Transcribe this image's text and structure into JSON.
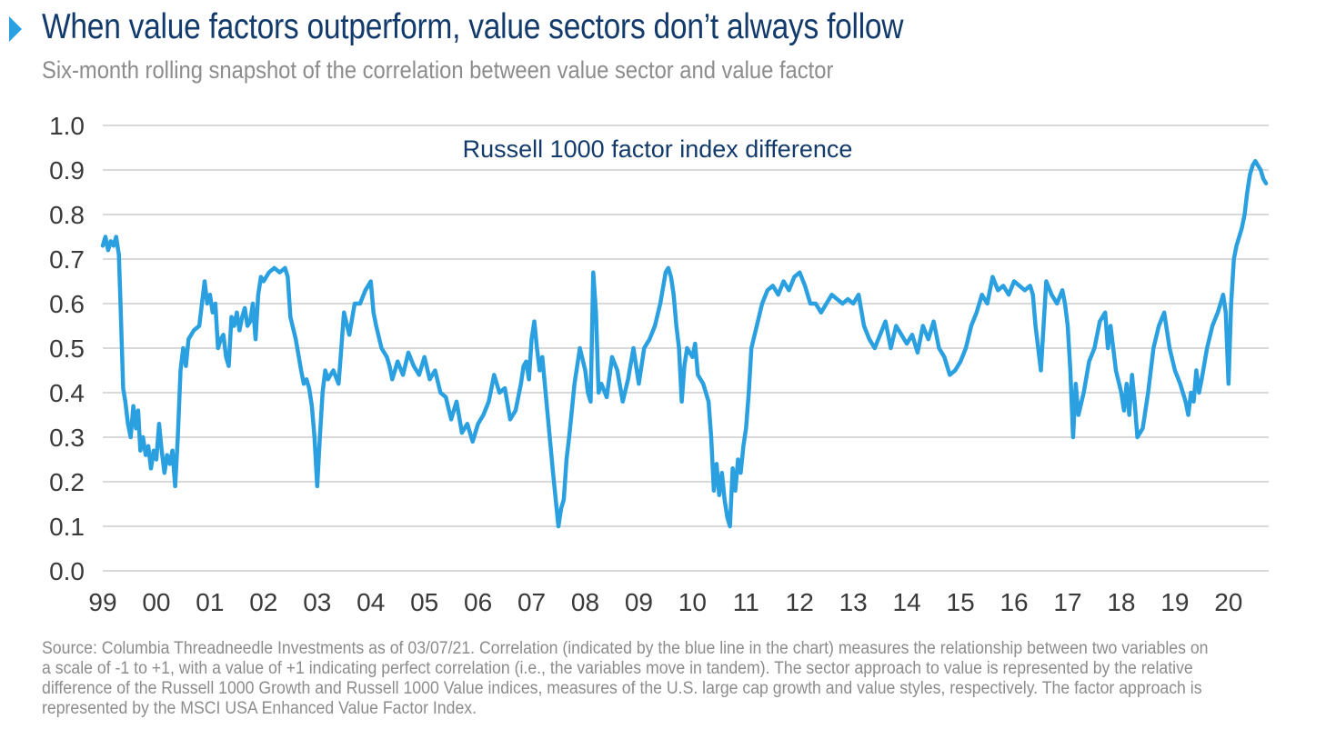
{
  "header": {
    "title": "When value factors outperform, value sectors don’t always follow",
    "subtitle": "Six-month rolling snapshot of the correlation between value sector and value factor"
  },
  "footer": {
    "source": "Source: Columbia Threadneedle Investments as of 03/07/21. Correlation (indicated by the blue line in the chart) measures the relationship between two variables on a scale of -1 to +1, with a value of +1 indicating perfect correlation (i.e., the variables move in tandem). The sector approach to value is represented by the relative difference of the Russell 1000 Growth and Russell 1000 Value indices, measures of the U.S. large cap growth and value styles, respectively. The factor approach is represented by the MSCI USA Enhanced Value Factor Index."
  },
  "colors": {
    "line": "#2aa0e0",
    "title": "#123a6b",
    "grid": "#d9d9d9",
    "text_gray": "#8c8c8c",
    "marker": "#2aa0e0"
  },
  "chart_data": {
    "type": "line",
    "series_label": "Russell 1000 factor index difference",
    "xlabel": "",
    "ylabel": "",
    "x_ticks": [
      "99",
      "00",
      "01",
      "02",
      "03",
      "04",
      "05",
      "06",
      "07",
      "08",
      "09",
      "10",
      "11",
      "12",
      "13",
      "14",
      "15",
      "16",
      "17",
      "18",
      "19",
      "20"
    ],
    "y_ticks": [
      "0.0",
      "0.1",
      "0.2",
      "0.3",
      "0.4",
      "0.5",
      "0.6",
      "0.7",
      "0.8",
      "0.9",
      "1.0"
    ],
    "xlim": [
      1999.0,
      2020.75
    ],
    "ylim": [
      0.0,
      1.0
    ],
    "grid": true,
    "series": [
      {
        "name": "Russell 1000 factor index difference",
        "x": [
          1999.0,
          1999.05,
          1999.1,
          1999.15,
          1999.2,
          1999.25,
          1999.3,
          1999.33,
          1999.38,
          1999.42,
          1999.47,
          1999.52,
          1999.57,
          1999.62,
          1999.66,
          1999.7,
          1999.75,
          1999.8,
          1999.85,
          1999.9,
          1999.95,
          2000.0,
          2000.05,
          2000.1,
          2000.15,
          2000.2,
          2000.25,
          2000.3,
          2000.35,
          2000.4,
          2000.45,
          2000.5,
          2000.55,
          2000.6,
          2000.7,
          2000.8,
          2000.9,
          2000.95,
          2001.0,
          2001.05,
          2001.1,
          2001.15,
          2001.2,
          2001.25,
          2001.3,
          2001.35,
          2001.4,
          2001.45,
          2001.5,
          2001.55,
          2001.6,
          2001.65,
          2001.7,
          2001.75,
          2001.8,
          2001.85,
          2001.9,
          2001.95,
          2002.0,
          2002.1,
          2002.2,
          2002.3,
          2002.4,
          2002.45,
          2002.5,
          2002.6,
          2002.7,
          2002.75,
          2002.8,
          2002.85,
          2002.9,
          2002.95,
          2003.0,
          2003.05,
          2003.1,
          2003.15,
          2003.2,
          2003.25,
          2003.3,
          2003.4,
          2003.45,
          2003.5,
          2003.6,
          2003.7,
          2003.8,
          2003.9,
          2004.0,
          2004.05,
          2004.1,
          2004.2,
          2004.3,
          2004.35,
          2004.4,
          2004.5,
          2004.6,
          2004.7,
          2004.8,
          2004.9,
          2005.0,
          2005.1,
          2005.2,
          2005.3,
          2005.4,
          2005.5,
          2005.6,
          2005.7,
          2005.8,
          2005.9,
          2006.0,
          2006.1,
          2006.2,
          2006.3,
          2006.4,
          2006.5,
          2006.6,
          2006.7,
          2006.8,
          2006.85,
          2006.9,
          2006.95,
          2007.0,
          2007.05,
          2007.1,
          2007.15,
          2007.2,
          2007.3,
          2007.4,
          2007.5,
          2007.55,
          2007.6,
          2007.65,
          2007.7,
          2007.8,
          2007.9,
          2008.0,
          2008.05,
          2008.1,
          2008.15,
          2008.2,
          2008.25,
          2008.3,
          2008.4,
          2008.5,
          2008.6,
          2008.7,
          2008.8,
          2008.9,
          2009.0,
          2009.1,
          2009.2,
          2009.3,
          2009.4,
          2009.5,
          2009.55,
          2009.6,
          2009.65,
          2009.7,
          2009.75,
          2009.8,
          2009.85,
          2009.9,
          2010.0,
          2010.05,
          2010.1,
          2010.2,
          2010.3,
          2010.35,
          2010.4,
          2010.45,
          2010.5,
          2010.55,
          2010.6,
          2010.65,
          2010.7,
          2010.75,
          2010.8,
          2010.85,
          2010.9,
          2010.95,
          2011.0,
          2011.05,
          2011.1,
          2011.2,
          2011.3,
          2011.4,
          2011.5,
          2011.6,
          2011.7,
          2011.8,
          2011.9,
          2012.0,
          2012.1,
          2012.2,
          2012.3,
          2012.4,
          2012.5,
          2012.6,
          2012.7,
          2012.8,
          2012.9,
          2013.0,
          2013.1,
          2013.2,
          2013.3,
          2013.4,
          2013.5,
          2013.6,
          2013.7,
          2013.8,
          2013.9,
          2014.0,
          2014.1,
          2014.2,
          2014.3,
          2014.4,
          2014.5,
          2014.6,
          2014.7,
          2014.8,
          2014.9,
          2015.0,
          2015.1,
          2015.2,
          2015.3,
          2015.4,
          2015.5,
          2015.6,
          2015.7,
          2015.8,
          2015.9,
          2016.0,
          2016.1,
          2016.2,
          2016.3,
          2016.35,
          2016.4,
          2016.5,
          2016.6,
          2016.7,
          2016.8,
          2016.9,
          2016.95,
          2017.0,
          2017.05,
          2017.1,
          2017.15,
          2017.2,
          2017.3,
          2017.4,
          2017.5,
          2017.6,
          2017.7,
          2017.75,
          2017.8,
          2017.9,
          2018.0,
          2018.05,
          2018.1,
          2018.15,
          2018.2,
          2018.25,
          2018.3,
          2018.4,
          2018.5,
          2018.6,
          2018.7,
          2018.8,
          2018.9,
          2019.0,
          2019.1,
          2019.2,
          2019.25,
          2019.3,
          2019.35,
          2019.4,
          2019.45,
          2019.5,
          2019.6,
          2019.7,
          2019.8,
          2019.85,
          2019.9,
          2019.95,
          2020.0,
          2020.05,
          2020.1,
          2020.15,
          2020.2,
          2020.25,
          2020.3,
          2020.35,
          2020.4,
          2020.45,
          2020.5,
          2020.55,
          2020.6,
          2020.65,
          2020.7
        ],
        "values": [
          0.73,
          0.75,
          0.72,
          0.74,
          0.73,
          0.75,
          0.71,
          0.6,
          0.41,
          0.38,
          0.33,
          0.3,
          0.37,
          0.32,
          0.36,
          0.27,
          0.3,
          0.26,
          0.28,
          0.23,
          0.27,
          0.25,
          0.33,
          0.27,
          0.22,
          0.26,
          0.24,
          0.27,
          0.19,
          0.3,
          0.45,
          0.5,
          0.46,
          0.52,
          0.54,
          0.55,
          0.65,
          0.6,
          0.62,
          0.58,
          0.6,
          0.5,
          0.52,
          0.53,
          0.48,
          0.46,
          0.57,
          0.55,
          0.58,
          0.54,
          0.57,
          0.59,
          0.55,
          0.56,
          0.6,
          0.52,
          0.62,
          0.66,
          0.65,
          0.67,
          0.68,
          0.67,
          0.68,
          0.66,
          0.57,
          0.52,
          0.45,
          0.42,
          0.43,
          0.41,
          0.37,
          0.3,
          0.19,
          0.3,
          0.4,
          0.45,
          0.43,
          0.44,
          0.45,
          0.42,
          0.5,
          0.58,
          0.53,
          0.6,
          0.6,
          0.63,
          0.65,
          0.58,
          0.55,
          0.5,
          0.48,
          0.46,
          0.43,
          0.47,
          0.44,
          0.49,
          0.46,
          0.44,
          0.48,
          0.43,
          0.45,
          0.4,
          0.39,
          0.34,
          0.38,
          0.31,
          0.33,
          0.29,
          0.33,
          0.35,
          0.38,
          0.44,
          0.4,
          0.41,
          0.34,
          0.36,
          0.42,
          0.46,
          0.47,
          0.43,
          0.52,
          0.56,
          0.5,
          0.45,
          0.48,
          0.35,
          0.22,
          0.1,
          0.14,
          0.16,
          0.25,
          0.3,
          0.42,
          0.5,
          0.45,
          0.4,
          0.38,
          0.67,
          0.58,
          0.4,
          0.42,
          0.39,
          0.48,
          0.45,
          0.38,
          0.43,
          0.5,
          0.42,
          0.5,
          0.52,
          0.55,
          0.6,
          0.67,
          0.68,
          0.66,
          0.62,
          0.55,
          0.5,
          0.38,
          0.46,
          0.5,
          0.48,
          0.51,
          0.44,
          0.42,
          0.38,
          0.3,
          0.18,
          0.24,
          0.17,
          0.22,
          0.16,
          0.12,
          0.1,
          0.23,
          0.18,
          0.25,
          0.22,
          0.28,
          0.32,
          0.4,
          0.5,
          0.55,
          0.6,
          0.63,
          0.64,
          0.62,
          0.65,
          0.63,
          0.66,
          0.67,
          0.64,
          0.6,
          0.6,
          0.58,
          0.6,
          0.62,
          0.61,
          0.6,
          0.61,
          0.6,
          0.62,
          0.55,
          0.52,
          0.5,
          0.53,
          0.56,
          0.5,
          0.55,
          0.53,
          0.51,
          0.53,
          0.49,
          0.55,
          0.52,
          0.56,
          0.5,
          0.48,
          0.44,
          0.45,
          0.47,
          0.5,
          0.55,
          0.58,
          0.62,
          0.6,
          0.66,
          0.63,
          0.64,
          0.62,
          0.65,
          0.64,
          0.63,
          0.64,
          0.62,
          0.55,
          0.45,
          0.65,
          0.62,
          0.6,
          0.63,
          0.6,
          0.55,
          0.45,
          0.3,
          0.42,
          0.35,
          0.4,
          0.47,
          0.5,
          0.56,
          0.58,
          0.5,
          0.55,
          0.45,
          0.4,
          0.36,
          0.42,
          0.35,
          0.44,
          0.38,
          0.3,
          0.32,
          0.4,
          0.5,
          0.55,
          0.58,
          0.5,
          0.45,
          0.42,
          0.38,
          0.35,
          0.4,
          0.38,
          0.45,
          0.4,
          0.43,
          0.5,
          0.55,
          0.58,
          0.6,
          0.62,
          0.58,
          0.42,
          0.6,
          0.7,
          0.73,
          0.75,
          0.77,
          0.8,
          0.85,
          0.89,
          0.91,
          0.92,
          0.91,
          0.9,
          0.88,
          0.87
        ]
      }
    ]
  }
}
